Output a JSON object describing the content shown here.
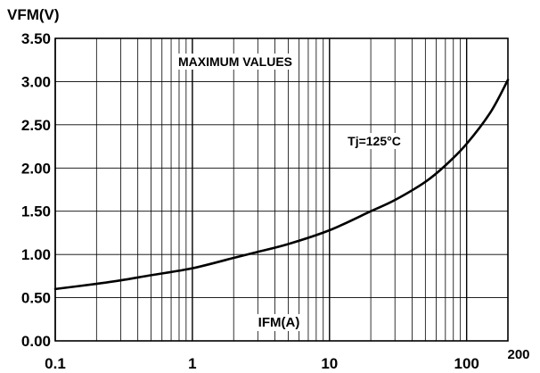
{
  "chart_data": {
    "type": "line",
    "xlabel": "IFM(A)",
    "ylabel": "VFM(V)",
    "x_scale": "log",
    "xlim": [
      0.1,
      200
    ],
    "ylim": [
      0,
      3.5
    ],
    "grid": true,
    "x_ticks": [
      0.1,
      1,
      10,
      100,
      200
    ],
    "x_tick_labels": [
      "0.1",
      "1",
      "10",
      "100",
      "200"
    ],
    "y_ticks": [
      0,
      0.5,
      1,
      1.5,
      2,
      2.5,
      3,
      3.5
    ],
    "y_tick_labels": [
      "0.00",
      "0.50",
      "1.00",
      "1.50",
      "2.00",
      "2.50",
      "3.00",
      "3.50"
    ],
    "annotations": [
      {
        "id": "max",
        "text": "MAXIMUM VALUES"
      },
      {
        "id": "tj",
        "text": "Tj=125°C"
      }
    ],
    "series": [
      {
        "x": [
          0.1,
          0.2,
          0.3,
          0.5,
          1,
          2,
          3,
          5,
          10,
          20,
          30,
          50,
          70,
          100,
          150,
          200
        ],
        "y": [
          0.6,
          0.66,
          0.7,
          0.76,
          0.84,
          0.96,
          1.03,
          1.12,
          1.28,
          1.5,
          1.63,
          1.84,
          2.03,
          2.28,
          2.65,
          3.02
        ]
      }
    ]
  }
}
